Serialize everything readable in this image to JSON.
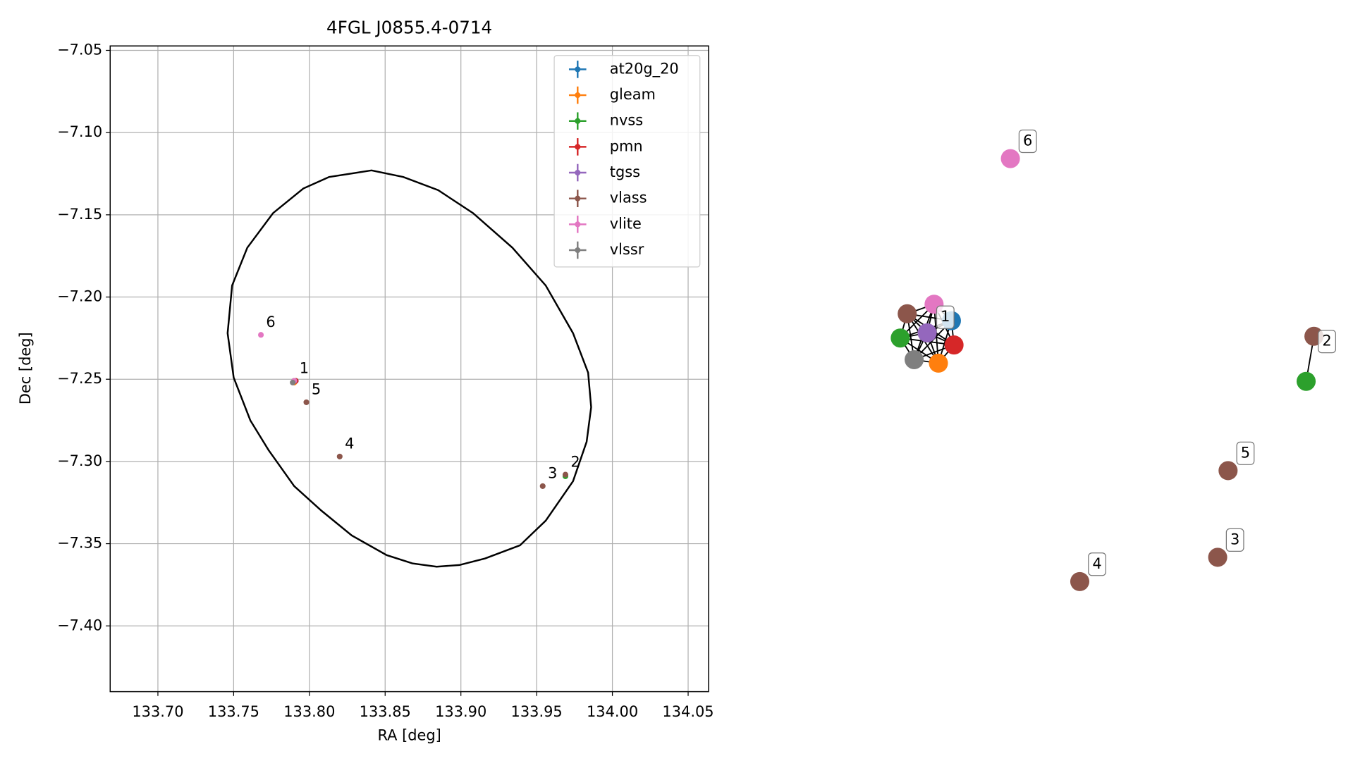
{
  "chart_data": {
    "type": "scatter",
    "title": "4FGL J0855.4-0714",
    "xlabel": "RA [deg]",
    "ylabel": "Dec [deg]",
    "xlim": [
      133.6685,
      134.0635
    ],
    "ylim": [
      -7.44,
      -7.0473
    ],
    "xticks": [
      {
        "value": 133.7,
        "label": "133.70"
      },
      {
        "value": 133.75,
        "label": "133.75"
      },
      {
        "value": 133.8,
        "label": "133.80"
      },
      {
        "value": 133.85,
        "label": "133.85"
      },
      {
        "value": 133.9,
        "label": "133.90"
      },
      {
        "value": 133.95,
        "label": "133.95"
      },
      {
        "value": 134.0,
        "label": "134.00"
      },
      {
        "value": 134.05,
        "label": "134.05"
      }
    ],
    "yticks": [
      {
        "value": -7.05,
        "label": "−7.05"
      },
      {
        "value": -7.1,
        "label": "−7.10"
      },
      {
        "value": -7.15,
        "label": "−7.15"
      },
      {
        "value": -7.2,
        "label": "−7.20"
      },
      {
        "value": -7.25,
        "label": "−7.25"
      },
      {
        "value": -7.3,
        "label": "−7.30"
      },
      {
        "value": -7.35,
        "label": "−7.35"
      },
      {
        "value": -7.4,
        "label": "−7.40"
      }
    ],
    "grid": true,
    "legend": "upper right",
    "series": [
      {
        "name": "at20g_20",
        "color": "#1f77b4",
        "x": [
          133.791
        ],
        "y": [
          -7.251
        ]
      },
      {
        "name": "gleam",
        "color": "#ff7f0e",
        "x": [
          133.79
        ],
        "y": [
          -7.252
        ]
      },
      {
        "name": "nvss",
        "color": "#2ca02c",
        "x": [
          133.79,
          133.969
        ],
        "y": [
          -7.251,
          -7.309
        ]
      },
      {
        "name": "pmn",
        "color": "#d62728",
        "x": [
          133.791
        ],
        "y": [
          -7.251
        ]
      },
      {
        "name": "tgss",
        "color": "#9467bd",
        "x": [
          133.79
        ],
        "y": [
          -7.251
        ]
      },
      {
        "name": "vlass",
        "color": "#8c564b",
        "x": [
          133.79,
          133.969,
          133.954,
          133.82,
          133.798
        ],
        "y": [
          -7.251,
          -7.308,
          -7.315,
          -7.297,
          -7.264
        ]
      },
      {
        "name": "vlite",
        "color": "#e377c2",
        "x": [
          133.79,
          133.768
        ],
        "y": [
          -7.251,
          -7.223
        ]
      },
      {
        "name": "vlssr",
        "color": "#7f7f7f",
        "x": [
          133.789
        ],
        "y": [
          -7.252
        ]
      }
    ],
    "ellipse": {
      "color": "#000000",
      "x": [
        133.841,
        133.862,
        133.885,
        133.908,
        133.934,
        133.956,
        133.974,
        133.984,
        133.986,
        133.983,
        133.974,
        133.956,
        133.939,
        133.916,
        133.899,
        133.884,
        133.868,
        133.851,
        133.828,
        133.808,
        133.79,
        133.773,
        133.761,
        133.75,
        133.746,
        133.749,
        133.759,
        133.776,
        133.796,
        133.813
      ],
      "y": [
        -7.123,
        -7.127,
        -7.135,
        -7.149,
        -7.17,
        -7.193,
        -7.222,
        -7.246,
        -7.267,
        -7.288,
        -7.312,
        -7.336,
        -7.351,
        -7.359,
        -7.363,
        -7.364,
        -7.362,
        -7.357,
        -7.345,
        -7.33,
        -7.315,
        -7.293,
        -7.275,
        -7.249,
        -7.222,
        -7.193,
        -7.17,
        -7.149,
        -7.134,
        -7.127
      ]
    },
    "annotations": [
      {
        "text": "1",
        "x": 133.79,
        "y": -7.251
      },
      {
        "text": "2",
        "x": 133.969,
        "y": -7.308
      },
      {
        "text": "3",
        "x": 133.954,
        "y": -7.315
      },
      {
        "text": "4",
        "x": 133.82,
        "y": -7.297
      },
      {
        "text": "5",
        "x": 133.798,
        "y": -7.264
      },
      {
        "text": "6",
        "x": 133.768,
        "y": -7.223
      }
    ]
  },
  "graph": {
    "labels": [
      "1",
      "2",
      "3",
      "4",
      "5",
      "6"
    ]
  }
}
